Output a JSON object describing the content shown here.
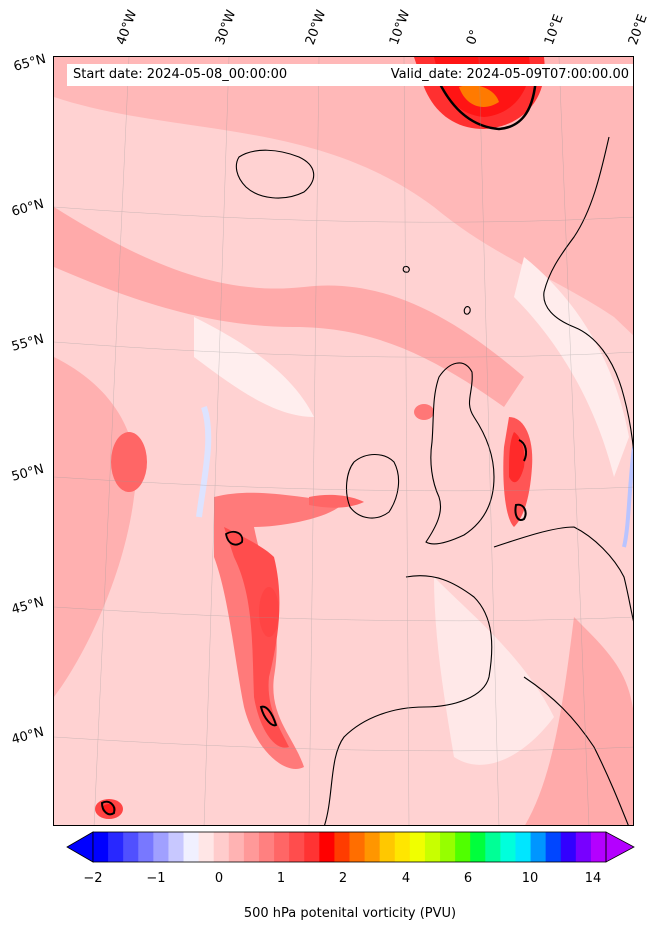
{
  "header": {
    "start_date": "Start date: 2024-05-08_00:00:00",
    "valid_date": "Valid_date: 2024-05-09T07:00:00.00"
  },
  "axes": {
    "longitude_labels": [
      "40°W",
      "30°W",
      "20°W",
      "10°W",
      "0°",
      "10°E",
      "20°E"
    ],
    "latitude_labels": [
      "65°N",
      "60°N",
      "55°N",
      "50°N",
      "45°N",
      "40°N"
    ]
  },
  "colorbar": {
    "label": "500 hPa potenital vorticity (PVU)",
    "ticks": [
      "−2",
      "−1",
      "0",
      "1",
      "2",
      "4",
      "6",
      "10",
      "14"
    ],
    "colors": [
      "#0000ff",
      "#2828ff",
      "#5050ff",
      "#7878ff",
      "#a0a0ff",
      "#c8c8ff",
      "#f0f0ff",
      "#ffe6e6",
      "#ffcccc",
      "#ffb3b3",
      "#ff9999",
      "#ff8080",
      "#ff6666",
      "#ff4d4d",
      "#ff3333",
      "#ff0000",
      "#ff3c00",
      "#ff6e00",
      "#ff9600",
      "#ffc800",
      "#ffe600",
      "#f0ff00",
      "#c8ff00",
      "#96ff00",
      "#50ff00",
      "#00ff3c",
      "#00ff96",
      "#00ffdc",
      "#00e6ff",
      "#0096ff",
      "#0046ff",
      "#3200ff",
      "#7800ff",
      "#b400ff"
    ],
    "under_color": "#0000ff",
    "over_color": "#b400ff"
  },
  "colors": {
    "light_red": "#ffd9d9",
    "mid_red": "#ffaaaa",
    "strong_red": "#ff5c5c",
    "max_red": "#ff1a1a",
    "orange": "#ff7a00",
    "coast": "#000000"
  }
}
